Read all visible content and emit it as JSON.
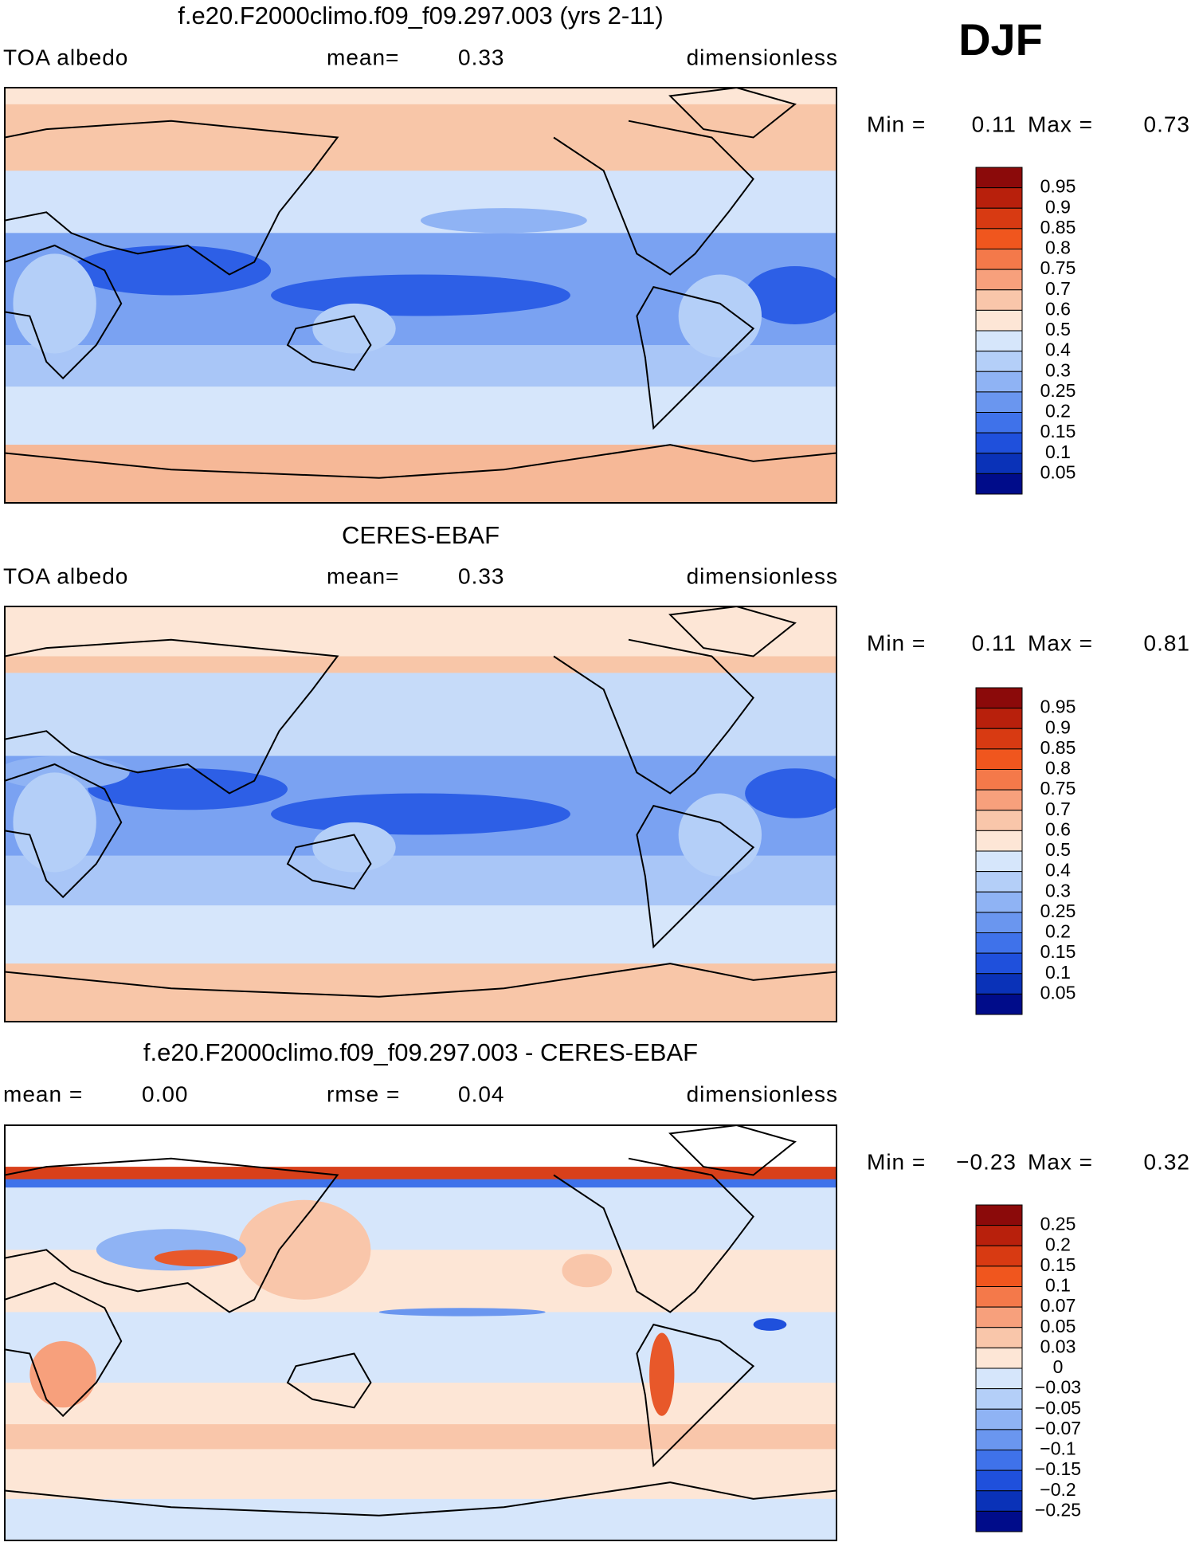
{
  "header": {
    "season": "DJF"
  },
  "panels": [
    {
      "title": "f.e20.F2000climo.f09_f09.297.003 (yrs 2-11)",
      "left_label": "TOA albedo",
      "center_label": "mean=",
      "center_value": "0.33",
      "right_label": "dimensionless",
      "min_label": "Min =",
      "min": "0.11",
      "max_label": "Max =",
      "max": "0.73",
      "colorbar": {
        "labels": [
          "0.95",
          "0.9",
          "0.85",
          "0.8",
          "0.75",
          "0.7",
          "0.6",
          "0.5",
          "0.4",
          "0.3",
          "0.25",
          "0.2",
          "0.15",
          "0.1",
          "0.05"
        ],
        "colors": [
          "#8b0a0a",
          "#b8200c",
          "#d83a12",
          "#f0561e",
          "#f4794a",
          "#f7a07c",
          "#f9c6aa",
          "#fde6d6",
          "#d6e6fb",
          "#b4cff8",
          "#8fb3f4",
          "#6a96ef",
          "#3f72ea",
          "#1f50dc",
          "#0a32b8",
          "#000c8a"
        ]
      }
    },
    {
      "title": "CERES-EBAF",
      "left_label": "TOA albedo",
      "center_label": "mean=",
      "center_value": "0.33",
      "right_label": "dimensionless",
      "min_label": "Min =",
      "min": "0.11",
      "max_label": "Max =",
      "max": "0.81",
      "colorbar": {
        "labels": [
          "0.95",
          "0.9",
          "0.85",
          "0.8",
          "0.75",
          "0.7",
          "0.6",
          "0.5",
          "0.4",
          "0.3",
          "0.25",
          "0.2",
          "0.15",
          "0.1",
          "0.05"
        ],
        "colors": [
          "#8b0a0a",
          "#b8200c",
          "#d83a12",
          "#f0561e",
          "#f4794a",
          "#f7a07c",
          "#f9c6aa",
          "#fde6d6",
          "#d6e6fb",
          "#b4cff8",
          "#8fb3f4",
          "#6a96ef",
          "#3f72ea",
          "#1f50dc",
          "#0a32b8",
          "#000c8a"
        ]
      }
    },
    {
      "title": "f.e20.F2000climo.f09_f09.297.003 - CERES-EBAF",
      "left_label": "mean =",
      "left_value": "0.00",
      "center_label": "rmse =",
      "center_value": "0.04",
      "right_label": "dimensionless",
      "min_label": "Min =",
      "min": "−0.23",
      "max_label": "Max =",
      "max": "0.32",
      "colorbar": {
        "labels": [
          "0.25",
          "0.2",
          "0.15",
          "0.1",
          "0.07",
          "0.05",
          "0.03",
          "0",
          "−0.03",
          "−0.05",
          "−0.07",
          "−0.1",
          "−0.15",
          "−0.2",
          "−0.25"
        ],
        "colors": [
          "#8b0a0a",
          "#b8200c",
          "#d83a12",
          "#f0561e",
          "#f4794a",
          "#f7a07c",
          "#f9c6aa",
          "#fde6d6",
          "#d6e6fb",
          "#b4cff8",
          "#8fb3f4",
          "#6a96ef",
          "#3f72ea",
          "#1f50dc",
          "#0a32b8",
          "#000c8a"
        ]
      }
    }
  ]
}
